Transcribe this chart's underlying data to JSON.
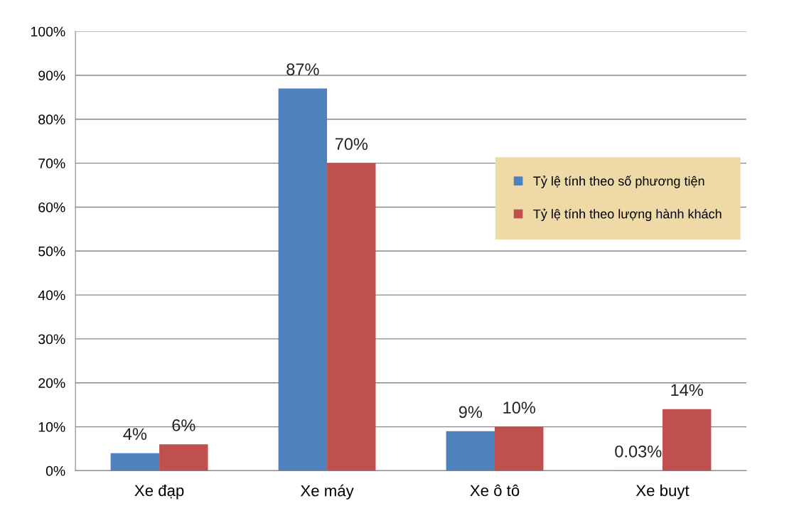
{
  "chart_data": {
    "type": "bar",
    "categories": [
      "Xe đạp",
      "Xe máy",
      "Xe ô tô",
      "Xe buyt"
    ],
    "series": [
      {
        "name": "Tỷ lệ tính theo số phương tiện",
        "color": "#4f81bd",
        "values": [
          4,
          87,
          9,
          0.03
        ],
        "value_labels": [
          "4%",
          "87%",
          "9%",
          "0.03%"
        ]
      },
      {
        "name": "Tỷ lệ tính theo lượng hành khách",
        "color": "#c0504d",
        "values": [
          6,
          70,
          10,
          14
        ],
        "value_labels": [
          "6%",
          "70%",
          "10%",
          "14%"
        ]
      }
    ],
    "ylim": [
      0,
      100
    ],
    "yticks": [
      {
        "value": 0,
        "label": "0%"
      },
      {
        "value": 10,
        "label": "10%"
      },
      {
        "value": 20,
        "label": "20%"
      },
      {
        "value": 30,
        "label": "30%"
      },
      {
        "value": 40,
        "label": "40%"
      },
      {
        "value": 50,
        "label": "50%"
      },
      {
        "value": 60,
        "label": "60%"
      },
      {
        "value": 70,
        "label": "70%"
      },
      {
        "value": 80,
        "label": "80%"
      },
      {
        "value": 90,
        "label": "90%"
      },
      {
        "value": 100,
        "label": "100%"
      }
    ],
    "grid": "y",
    "legend": "right"
  }
}
